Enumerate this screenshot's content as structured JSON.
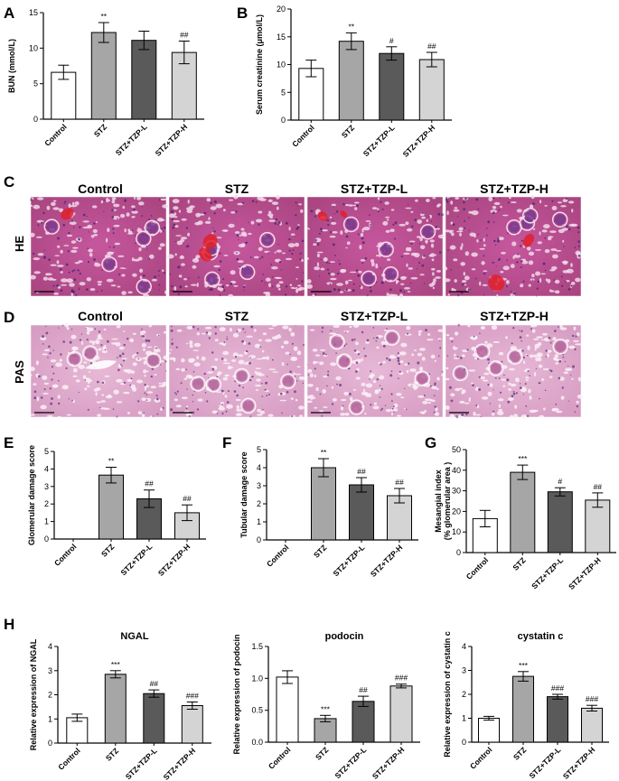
{
  "panel_letters": [
    "A",
    "B",
    "C",
    "D",
    "E",
    "F",
    "G",
    "H"
  ],
  "histology": {
    "group_headers": [
      "Control",
      "STZ",
      "STZ+TZP-L",
      "STZ+TZP-H"
    ],
    "rows": [
      {
        "label": "HE",
        "stain": "he"
      },
      {
        "label": "PAS",
        "stain": "pas"
      }
    ]
  },
  "colors": {
    "Control": "#ffffff",
    "STZ": "#a6a6a6",
    "STZ+TZP-L": "#5a5a5a",
    "STZ+TZP-H": "#d4d4d4"
  },
  "chart_data": [
    {
      "id": "A",
      "type": "bar",
      "title": "",
      "categories": [
        "Control",
        "STZ",
        "STZ+TZP-L",
        "STZ+TZP-H"
      ],
      "values": [
        6.6,
        12.2,
        11.1,
        9.4
      ],
      "errors": [
        1.0,
        1.4,
        1.3,
        1.6
      ],
      "significance": [
        "",
        "**",
        "",
        "##"
      ],
      "ylabel": "BUN (mmol/L)",
      "ylim": [
        0,
        15
      ],
      "yticks": [
        0,
        5,
        10,
        15
      ]
    },
    {
      "id": "B",
      "type": "bar",
      "title": "",
      "categories": [
        "Control",
        "STZ",
        "STZ+TZP-L",
        "STZ+TZP-H"
      ],
      "values": [
        9.3,
        14.2,
        12.0,
        10.9
      ],
      "errors": [
        1.5,
        1.5,
        1.2,
        1.3
      ],
      "significance": [
        "",
        "**",
        "#",
        "##"
      ],
      "ylabel": "Serum creatinine (μmol/L)",
      "ylim": [
        0,
        20
      ],
      "yticks": [
        0,
        5,
        10,
        15,
        20
      ]
    },
    {
      "id": "E",
      "type": "bar",
      "title": "",
      "categories": [
        "Control",
        "STZ",
        "STZ+TZP-L",
        "STZ+TZP-H"
      ],
      "values": [
        0,
        3.65,
        2.3,
        1.5
      ],
      "errors": [
        0,
        0.45,
        0.5,
        0.45
      ],
      "significance": [
        "",
        "**",
        "##",
        "##"
      ],
      "ylabel": "Glomerular damage score",
      "ylim": [
        0,
        5
      ],
      "yticks": [
        0,
        1,
        2,
        3,
        4,
        5
      ]
    },
    {
      "id": "F",
      "type": "bar",
      "title": "",
      "categories": [
        "Control",
        "STZ",
        "STZ+TZP-L",
        "STZ+TZP-H"
      ],
      "values": [
        0,
        4.0,
        3.05,
        2.45
      ],
      "errors": [
        0,
        0.5,
        0.4,
        0.4
      ],
      "significance": [
        "",
        "**",
        "##",
        "##"
      ],
      "ylabel": "Tubular damage score",
      "ylim": [
        0,
        5
      ],
      "yticks": [
        0,
        1,
        2,
        3,
        4,
        5
      ]
    },
    {
      "id": "G",
      "type": "bar",
      "title": "",
      "categories": [
        "Control",
        "STZ",
        "STZ+TZP-L",
        "STZ+TZP-H"
      ],
      "values": [
        16.5,
        39.0,
        29.5,
        25.5
      ],
      "errors": [
        4.0,
        3.5,
        2.0,
        3.5
      ],
      "significance": [
        "",
        "***",
        "#",
        "##"
      ],
      "ylabel": "Mesangial index",
      "ylabel2": "(% glomerular area )",
      "ylim": [
        0,
        50
      ],
      "yticks": [
        0,
        10,
        20,
        30,
        40,
        50
      ]
    },
    {
      "id": "H1",
      "type": "bar",
      "title": "NGAL",
      "categories": [
        "Control",
        "STZ",
        "STZ+TZP-L",
        "STZ+TZP-H"
      ],
      "values": [
        1.05,
        2.85,
        2.05,
        1.55
      ],
      "errors": [
        0.15,
        0.15,
        0.15,
        0.15
      ],
      "significance": [
        "",
        "***",
        "##",
        "###"
      ],
      "ylabel": "Relative expression of NGAL",
      "ylim": [
        0,
        4
      ],
      "yticks": [
        0,
        1,
        2,
        3,
        4
      ]
    },
    {
      "id": "H2",
      "type": "bar",
      "title": "podocin",
      "categories": [
        "Control",
        "STZ",
        "STZ+TZP-L",
        "STZ+TZP-H"
      ],
      "values": [
        1.02,
        0.37,
        0.64,
        0.88
      ],
      "errors": [
        0.1,
        0.05,
        0.08,
        0.03
      ],
      "significance": [
        "",
        "***",
        "##",
        "###"
      ],
      "ylabel": "Relative expression of podocin",
      "ylim": [
        0,
        1.5
      ],
      "yticks": [
        "0.0",
        "0.5",
        "1.0",
        "1.5"
      ]
    },
    {
      "id": "H3",
      "type": "bar",
      "title": "cystatin c",
      "categories": [
        "Control",
        "STZ",
        "STZ+TZP-L",
        "STZ+TZP-H"
      ],
      "values": [
        1.0,
        2.75,
        1.9,
        1.42
      ],
      "errors": [
        0.08,
        0.2,
        0.1,
        0.12
      ],
      "significance": [
        "",
        "***",
        "###",
        "###"
      ],
      "ylabel": "Relative expression of cystatin c",
      "ylim": [
        0,
        4
      ],
      "yticks": [
        0,
        1,
        2,
        3,
        4
      ]
    }
  ]
}
